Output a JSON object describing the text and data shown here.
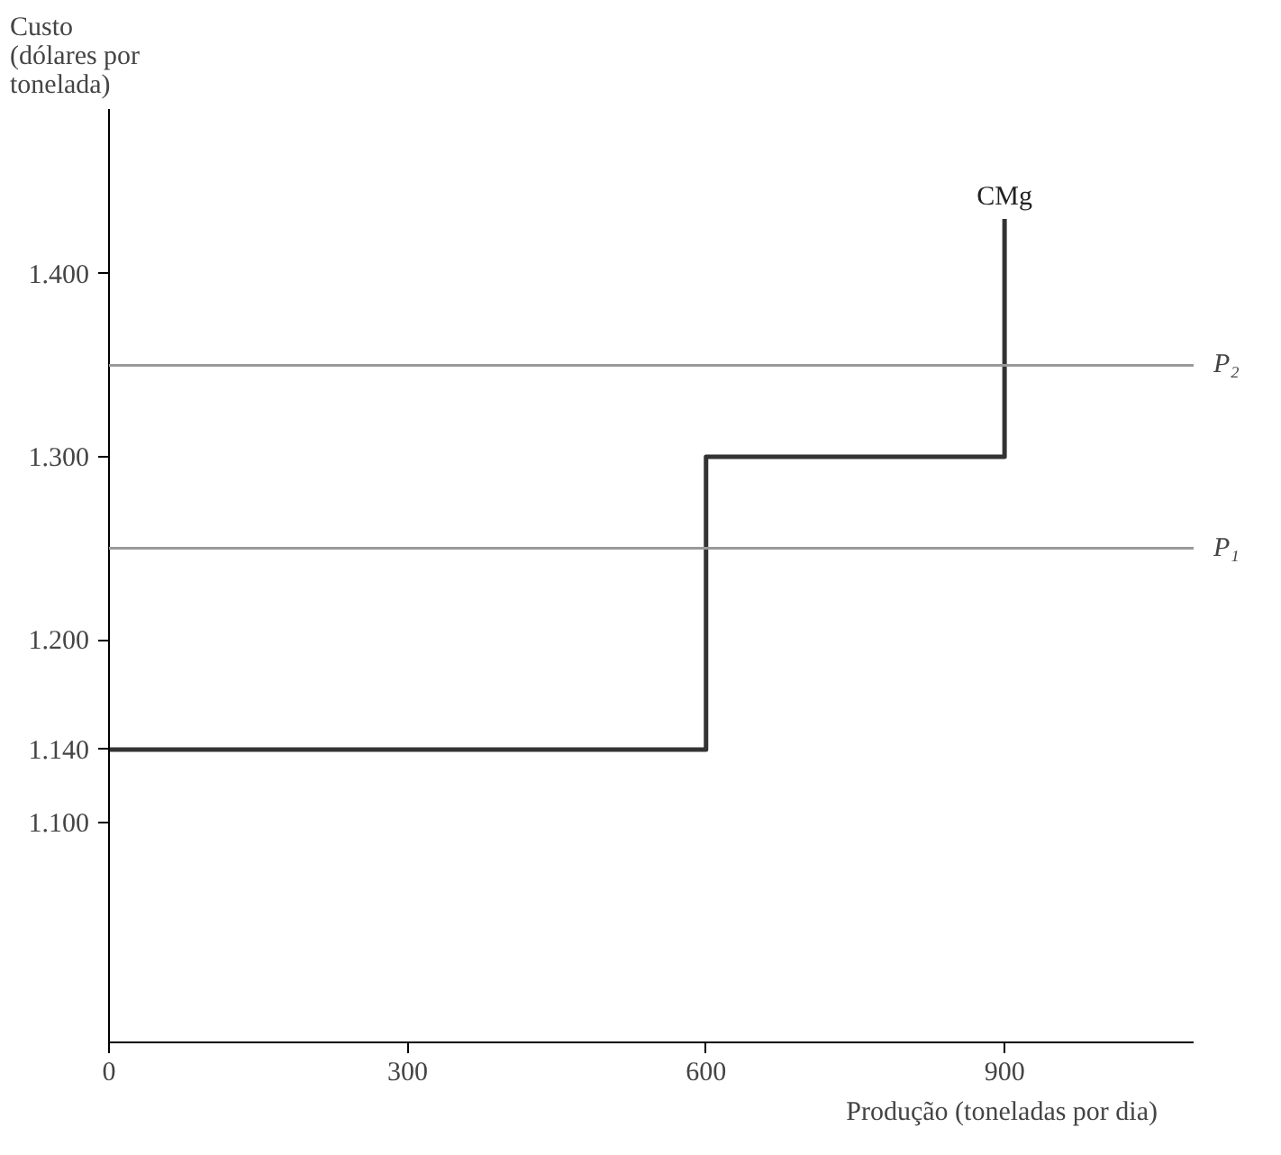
{
  "chart_data": {
    "type": "step",
    "xlabel": "Produção (toneladas por dia)",
    "ylabel": "Custo\n(dólares por\ntonelada)",
    "x": [
      0,
      600,
      900
    ],
    "series": [
      {
        "name": "CMg",
        "color": "#333333",
        "values": [
          1.14,
          1.3,
          1.43
        ]
      }
    ],
    "xlim": [
      0,
      1090
    ],
    "ylim": [
      0.98,
      1.49
    ],
    "xticks": [
      0,
      300,
      600,
      900
    ],
    "yticks": [
      {
        "value": 1.1,
        "label": "1.100"
      },
      {
        "value": 1.14,
        "label": "1.140"
      },
      {
        "value": 1.2,
        "label": "1.200"
      },
      {
        "value": 1.3,
        "label": "1.300"
      },
      {
        "value": 1.4,
        "label": "1.400"
      }
    ],
    "ref_lines": [
      {
        "axis": "y",
        "value": 1.25,
        "label": "P₁",
        "color": "#999999"
      },
      {
        "axis": "y",
        "value": 1.35,
        "label": "P₂",
        "color": "#999999"
      }
    ],
    "grid": false,
    "line_style": "solid"
  }
}
